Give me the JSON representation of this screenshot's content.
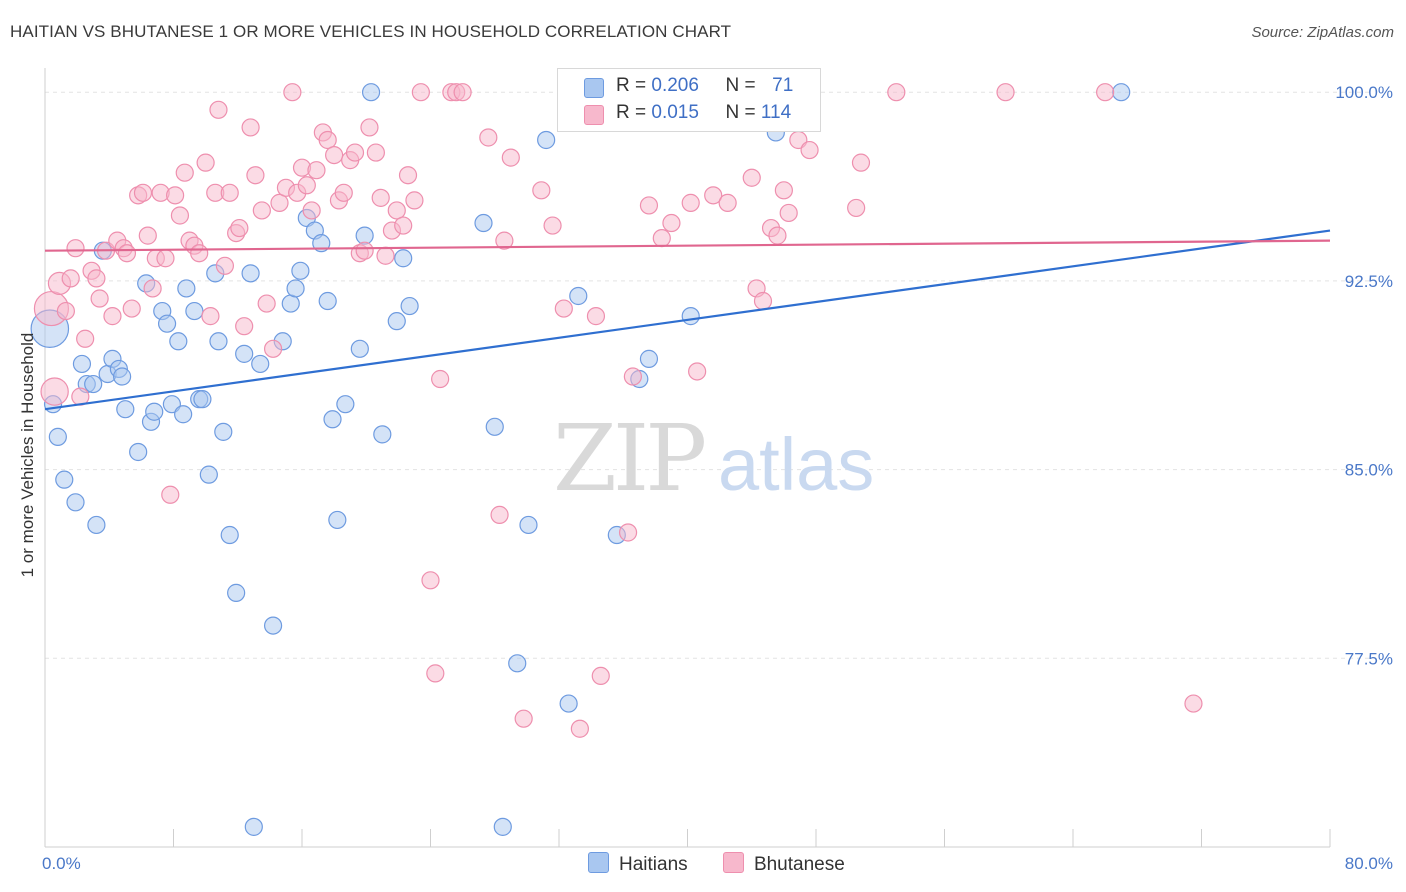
{
  "title": "HAITIAN VS BHUTANESE 1 OR MORE VEHICLES IN HOUSEHOLD CORRELATION CHART",
  "source": "Source: ZipAtlas.com",
  "watermark": {
    "zip": "ZIP",
    "atlas": "atlas"
  },
  "legend": {
    "rows": [
      {
        "r_label": "R =",
        "r_value": "0.206",
        "n_label": "N =",
        "n_value": "71"
      },
      {
        "r_label": "R =",
        "r_value": "0.015",
        "n_label": "N =",
        "n_value": "114"
      }
    ]
  },
  "bottom_legend": [
    "Haitians",
    "Bhutanese"
  ],
  "colors": {
    "haitian_fill": "#a9c7f0",
    "haitian_stroke": "#6e9be0",
    "haitian_line": "#2f6fd0",
    "bhutanese_fill": "#f7b8cc",
    "bhutanese_stroke": "#ee8fae",
    "bhutanese_line": "#e0668f",
    "tick_text": "#4a78c8",
    "grid": "#e3e3e3"
  },
  "chart_data": {
    "type": "scatter",
    "title": "HAITIAN VS BHUTANESE 1 OR MORE VEHICLES IN HOUSEHOLD CORRELATION CHART",
    "xlabel": "",
    "ylabel": "1 or more Vehicles in Household",
    "xlim": [
      0,
      80
    ],
    "ylim": [
      70.0,
      101.2
    ],
    "y_ticks": [
      77.5,
      85.0,
      92.5,
      100.0
    ],
    "y_tick_labels": [
      "77.5%",
      "85.0%",
      "92.5%",
      "100.0%"
    ],
    "x_tick_labels": [
      "0.0%",
      "80.0%"
    ],
    "grid": true,
    "legend_position": "top-center",
    "series": [
      {
        "name": "Haitians",
        "R": 0.206,
        "N": 71,
        "trend": {
          "x": [
            0,
            80
          ],
          "y": [
            87.4,
            94.5
          ]
        },
        "points": [
          [
            0.3,
            90.6,
            2.2
          ],
          [
            0.5,
            87.6,
            1
          ],
          [
            0.8,
            86.3,
            1
          ],
          [
            1.2,
            84.6,
            1
          ],
          [
            1.9,
            83.7,
            1
          ],
          [
            2.3,
            89.2,
            1
          ],
          [
            2.6,
            88.4,
            1
          ],
          [
            3.0,
            88.4,
            1
          ],
          [
            3.2,
            82.8,
            1
          ],
          [
            3.6,
            93.7,
            1
          ],
          [
            3.9,
            88.8,
            1
          ],
          [
            4.2,
            89.4,
            1
          ],
          [
            4.6,
            89.0,
            1
          ],
          [
            4.8,
            88.7,
            1
          ],
          [
            5.0,
            87.4,
            1
          ],
          [
            5.8,
            85.7,
            1
          ],
          [
            6.3,
            92.4,
            1
          ],
          [
            6.6,
            86.9,
            1
          ],
          [
            6.8,
            87.3,
            1
          ],
          [
            7.3,
            91.3,
            1
          ],
          [
            7.6,
            90.8,
            1
          ],
          [
            7.9,
            87.6,
            1
          ],
          [
            8.3,
            90.1,
            1
          ],
          [
            8.6,
            87.2,
            1
          ],
          [
            8.8,
            92.2,
            1
          ],
          [
            9.3,
            91.3,
            1
          ],
          [
            9.6,
            87.8,
            1
          ],
          [
            9.8,
            87.8,
            1
          ],
          [
            10.2,
            84.8,
            1
          ],
          [
            10.6,
            92.8,
            1
          ],
          [
            10.8,
            90.1,
            1
          ],
          [
            11.1,
            86.5,
            1
          ],
          [
            11.5,
            82.4,
            1
          ],
          [
            11.9,
            80.1,
            1
          ],
          [
            12.4,
            89.6,
            1
          ],
          [
            12.8,
            92.8,
            1
          ],
          [
            13.4,
            89.2,
            1
          ],
          [
            14.2,
            78.8,
            1
          ],
          [
            14.8,
            90.1,
            1
          ],
          [
            15.3,
            91.6,
            1
          ],
          [
            15.6,
            92.2,
            1
          ],
          [
            15.9,
            92.9,
            1
          ],
          [
            16.3,
            95.0,
            1
          ],
          [
            16.8,
            94.5,
            1
          ],
          [
            17.2,
            94.0,
            1
          ],
          [
            17.6,
            91.7,
            1
          ],
          [
            17.9,
            87.0,
            1
          ],
          [
            18.2,
            83.0,
            1
          ],
          [
            18.7,
            87.6,
            1
          ],
          [
            19.6,
            89.8,
            1
          ],
          [
            19.9,
            94.3,
            1
          ],
          [
            20.3,
            100.0,
            1
          ],
          [
            21.0,
            86.4,
            1
          ],
          [
            21.9,
            90.9,
            1
          ],
          [
            22.3,
            93.4,
            1
          ],
          [
            22.7,
            91.5,
            1
          ],
          [
            27.3,
            94.8,
            1
          ],
          [
            28.0,
            86.7,
            1
          ],
          [
            28.5,
            70.8,
            1
          ],
          [
            29.4,
            77.3,
            1
          ],
          [
            30.1,
            82.8,
            1
          ],
          [
            31.2,
            98.1,
            1
          ],
          [
            32.6,
            75.7,
            1
          ],
          [
            33.2,
            91.9,
            1
          ],
          [
            35.6,
            82.4,
            1
          ],
          [
            37.0,
            88.6,
            1
          ],
          [
            37.6,
            89.4,
            1
          ],
          [
            40.2,
            91.1,
            1
          ],
          [
            45.5,
            98.4,
            1
          ],
          [
            67.0,
            100.0,
            1
          ],
          [
            13.0,
            70.8,
            1
          ]
        ]
      },
      {
        "name": "Bhutanese",
        "R": 0.015,
        "N": 114,
        "trend": {
          "x": [
            0,
            80
          ],
          "y": [
            93.7,
            94.1
          ]
        },
        "points": [
          [
            0.4,
            91.4,
            2.0
          ],
          [
            0.6,
            88.1,
            1.6
          ],
          [
            0.9,
            92.4,
            1.3
          ],
          [
            1.3,
            91.3,
            1
          ],
          [
            1.6,
            92.6,
            1
          ],
          [
            1.9,
            93.8,
            1
          ],
          [
            2.2,
            87.9,
            1
          ],
          [
            2.5,
            90.2,
            1
          ],
          [
            2.9,
            92.9,
            1
          ],
          [
            3.2,
            92.6,
            1
          ],
          [
            3.4,
            91.8,
            1
          ],
          [
            3.8,
            93.7,
            1
          ],
          [
            4.2,
            91.1,
            1
          ],
          [
            4.5,
            94.1,
            1
          ],
          [
            4.9,
            93.8,
            1
          ],
          [
            5.1,
            93.6,
            1
          ],
          [
            5.4,
            91.4,
            1
          ],
          [
            5.8,
            95.9,
            1
          ],
          [
            6.1,
            96.0,
            1
          ],
          [
            6.4,
            94.3,
            1
          ],
          [
            6.7,
            92.2,
            1
          ],
          [
            6.9,
            93.4,
            1
          ],
          [
            7.2,
            96.0,
            1
          ],
          [
            7.5,
            93.4,
            1
          ],
          [
            7.8,
            84.0,
            1
          ],
          [
            8.1,
            95.9,
            1
          ],
          [
            8.4,
            95.1,
            1
          ],
          [
            8.7,
            96.8,
            1
          ],
          [
            9.0,
            94.1,
            1
          ],
          [
            9.3,
            93.9,
            1
          ],
          [
            9.6,
            93.6,
            1
          ],
          [
            10.0,
            97.2,
            1
          ],
          [
            10.3,
            91.1,
            1
          ],
          [
            10.6,
            96.0,
            1
          ],
          [
            10.8,
            99.3,
            1
          ],
          [
            11.2,
            93.1,
            1
          ],
          [
            11.5,
            96.0,
            1
          ],
          [
            11.9,
            94.4,
            1
          ],
          [
            12.1,
            94.6,
            1
          ],
          [
            12.4,
            90.7,
            1
          ],
          [
            12.8,
            98.6,
            1
          ],
          [
            13.1,
            96.7,
            1
          ],
          [
            13.5,
            95.3,
            1
          ],
          [
            13.8,
            91.6,
            1
          ],
          [
            14.2,
            89.8,
            1
          ],
          [
            14.6,
            95.6,
            1
          ],
          [
            15.0,
            96.2,
            1
          ],
          [
            15.4,
            100.0,
            1
          ],
          [
            15.7,
            96.0,
            1
          ],
          [
            16.0,
            97.0,
            1
          ],
          [
            16.3,
            96.3,
            1
          ],
          [
            16.6,
            95.3,
            1
          ],
          [
            16.9,
            96.9,
            1
          ],
          [
            17.3,
            98.4,
            1
          ],
          [
            17.6,
            98.1,
            1
          ],
          [
            18.0,
            97.5,
            1
          ],
          [
            18.3,
            95.7,
            1
          ],
          [
            18.6,
            96.0,
            1
          ],
          [
            19.0,
            97.3,
            1
          ],
          [
            19.3,
            97.6,
            1
          ],
          [
            19.6,
            93.6,
            1
          ],
          [
            19.9,
            93.7,
            1
          ],
          [
            20.2,
            98.6,
            1
          ],
          [
            20.6,
            97.6,
            1
          ],
          [
            20.9,
            95.8,
            1
          ],
          [
            21.2,
            93.5,
            1
          ],
          [
            21.6,
            94.5,
            1
          ],
          [
            21.9,
            95.3,
            1
          ],
          [
            22.3,
            94.7,
            1
          ],
          [
            22.6,
            96.7,
            1
          ],
          [
            23.0,
            95.7,
            1
          ],
          [
            23.4,
            100.0,
            1
          ],
          [
            24.0,
            80.6,
            1
          ],
          [
            24.3,
            76.9,
            1
          ],
          [
            24.6,
            88.6,
            1
          ],
          [
            25.3,
            100.0,
            1
          ],
          [
            25.6,
            100.0,
            1
          ],
          [
            26.0,
            100.0,
            1
          ],
          [
            27.6,
            98.2,
            1
          ],
          [
            28.3,
            83.2,
            1
          ],
          [
            28.6,
            94.1,
            1
          ],
          [
            29.0,
            97.4,
            1
          ],
          [
            29.8,
            75.1,
            1
          ],
          [
            30.9,
            96.1,
            1
          ],
          [
            31.6,
            94.7,
            1
          ],
          [
            32.3,
            91.4,
            1
          ],
          [
            33.3,
            74.7,
            1
          ],
          [
            34.3,
            91.1,
            1
          ],
          [
            34.6,
            76.8,
            1
          ],
          [
            35.1,
            100.0,
            1
          ],
          [
            36.3,
            82.5,
            1
          ],
          [
            36.6,
            88.7,
            1
          ],
          [
            37.6,
            95.5,
            1
          ],
          [
            38.4,
            94.2,
            1
          ],
          [
            39.0,
            94.8,
            1
          ],
          [
            40.2,
            95.6,
            1
          ],
          [
            40.6,
            88.9,
            1
          ],
          [
            41.6,
            95.9,
            1
          ],
          [
            42.5,
            95.6,
            1
          ],
          [
            44.0,
            96.6,
            1
          ],
          [
            44.3,
            92.2,
            1
          ],
          [
            44.7,
            91.7,
            1
          ],
          [
            45.2,
            94.6,
            1
          ],
          [
            45.6,
            94.3,
            1
          ],
          [
            46.0,
            96.1,
            1
          ],
          [
            46.3,
            95.2,
            1
          ],
          [
            46.9,
            98.1,
            1
          ],
          [
            47.6,
            97.7,
            1
          ],
          [
            50.5,
            95.4,
            1
          ],
          [
            50.8,
            97.2,
            1
          ],
          [
            53.0,
            100.0,
            1
          ],
          [
            59.8,
            100.0,
            1
          ],
          [
            66.0,
            100.0,
            1
          ],
          [
            71.5,
            75.7,
            1
          ]
        ]
      }
    ]
  }
}
